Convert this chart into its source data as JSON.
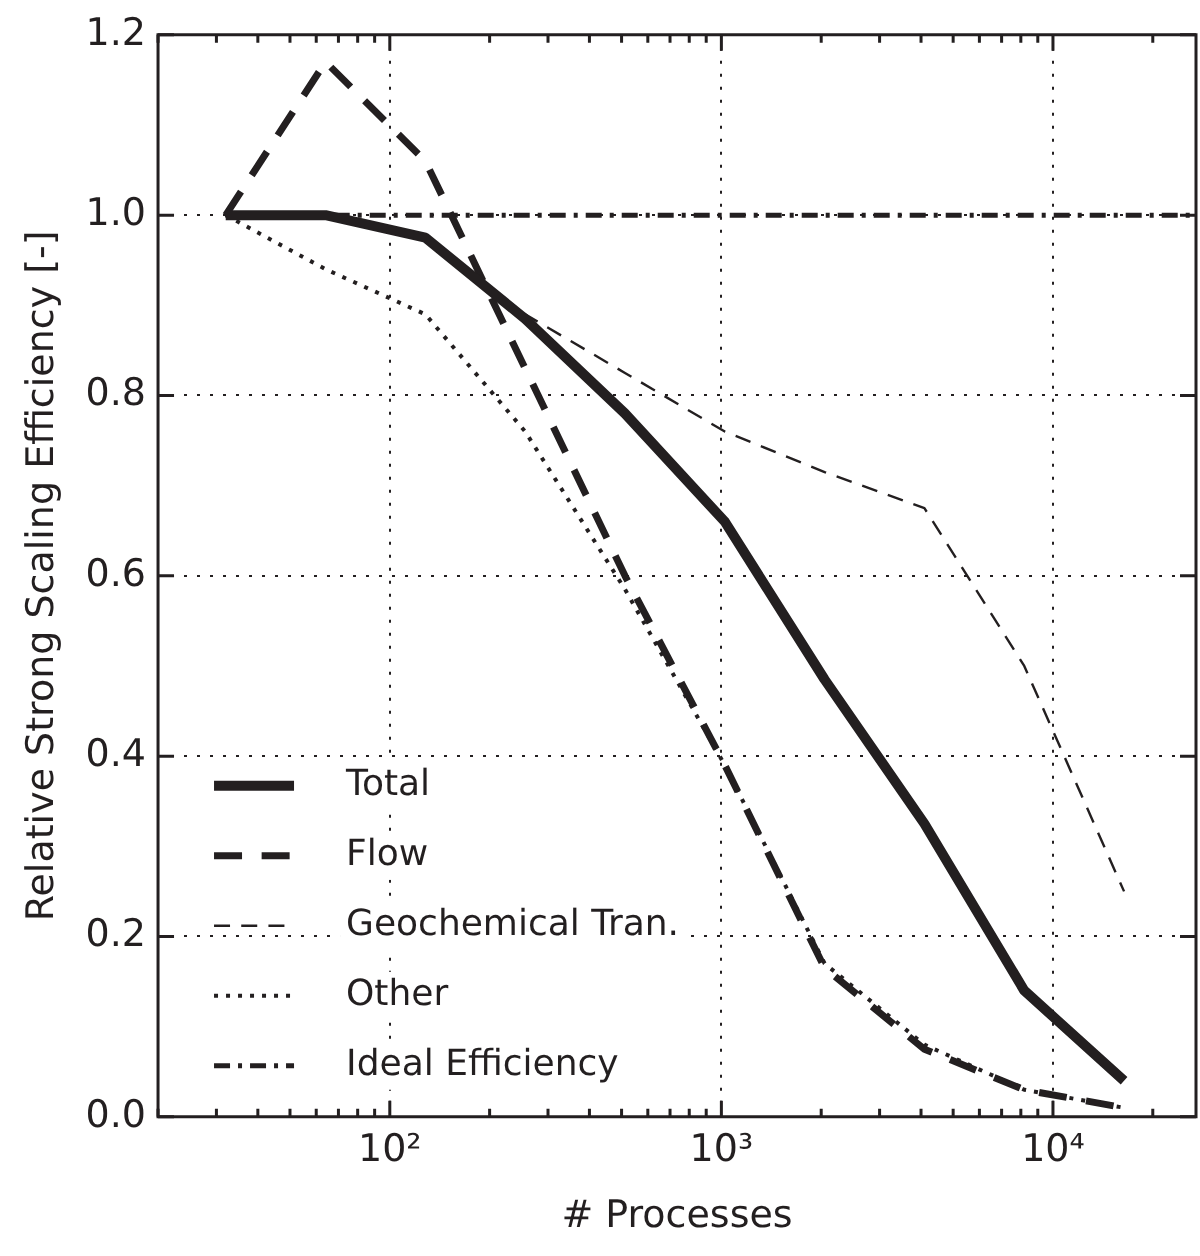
{
  "chart_data": {
    "type": "line",
    "xlabel": "# Processes",
    "ylabel": "Relative Strong Scaling Efficiency [-]",
    "x": [
      32,
      64,
      128,
      256,
      512,
      1024,
      2048,
      4096,
      8192,
      16384
    ],
    "series": [
      {
        "name": "Total",
        "color": "#231f20",
        "line_style": "solid",
        "values": [
          1.0,
          1.0,
          0.975,
          0.885,
          0.78,
          0.66,
          0.485,
          0.325,
          0.14,
          0.04
        ]
      },
      {
        "name": "Flow",
        "color": "#231f20",
        "line_style": "dashed",
        "values": [
          1.0,
          1.17,
          1.06,
          0.83,
          0.6,
          0.39,
          0.165,
          0.075,
          0.03,
          0.01
        ]
      },
      {
        "name": "Geochemical Tran.",
        "color": "#231f20",
        "line_style": "dashed",
        "values": [
          1.0,
          1.0,
          0.975,
          0.89,
          0.825,
          0.76,
          0.715,
          0.675,
          0.5,
          0.25
        ]
      },
      {
        "name": "Other",
        "color": "#231f20",
        "line_style": "dotted",
        "values": [
          1.0,
          0.94,
          0.89,
          0.76,
          0.585,
          0.39,
          0.17,
          0.08,
          0.03,
          0.01
        ]
      },
      {
        "name": "Ideal Efficiency",
        "color": "#231f20",
        "line_style": "dashdot",
        "x": [
          32,
          27000
        ],
        "values": [
          1.0,
          1.0
        ]
      }
    ],
    "log": "x",
    "xlim": [
      20,
      27000
    ],
    "xticks": [
      {
        "value": 20,
        "label": null
      },
      {
        "value": 30,
        "label": null
      },
      {
        "value": 40,
        "label": null
      },
      {
        "value": 50,
        "label": null
      },
      {
        "value": 60,
        "label": null
      },
      {
        "value": 70,
        "label": null
      },
      {
        "value": 80,
        "label": null
      },
      {
        "value": 90,
        "label": null
      },
      {
        "value": 100,
        "label": "10²"
      },
      {
        "value": 200,
        "label": null
      },
      {
        "value": 300,
        "label": null
      },
      {
        "value": 400,
        "label": null
      },
      {
        "value": 500,
        "label": null
      },
      {
        "value": 600,
        "label": null
      },
      {
        "value": 700,
        "label": null
      },
      {
        "value": 800,
        "label": null
      },
      {
        "value": 900,
        "label": null
      },
      {
        "value": 1000,
        "label": "10³"
      },
      {
        "value": 2000,
        "label": null
      },
      {
        "value": 3000,
        "label": null
      },
      {
        "value": 4000,
        "label": null
      },
      {
        "value": 5000,
        "label": null
      },
      {
        "value": 6000,
        "label": null
      },
      {
        "value": 7000,
        "label": null
      },
      {
        "value": 8000,
        "label": null
      },
      {
        "value": 9000,
        "label": null
      },
      {
        "value": 10000,
        "label": "10⁴"
      },
      {
        "value": 20000,
        "label": null
      }
    ],
    "ylim": [
      0,
      1.2
    ],
    "yticks": [
      {
        "value": 0,
        "label": "0.0"
      },
      {
        "value": 0.2,
        "label": "0.2"
      },
      {
        "value": 0.4,
        "label": "0.4"
      },
      {
        "value": 0.6,
        "label": "0.6"
      },
      {
        "value": 0.8,
        "label": "0.8"
      },
      {
        "value": 1.0,
        "label": "1.0"
      },
      {
        "value": 1.2,
        "label": "1.2"
      }
    ],
    "grid": true,
    "legend": "bottom left",
    "marker": "none"
  }
}
